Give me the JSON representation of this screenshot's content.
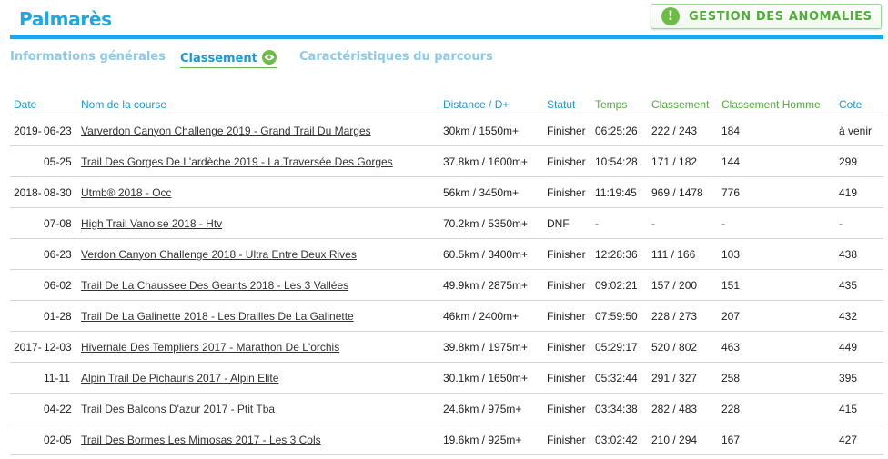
{
  "page_title": "Palmarès",
  "anomaly_button": {
    "label": "GESTION DES ANOMALIES",
    "icon_glyph": "!"
  },
  "tabs": [
    {
      "label": "Informations générales",
      "active": false
    },
    {
      "label": "Classement",
      "active": true
    },
    {
      "label": "Caractéristiques du parcours",
      "active": false
    }
  ],
  "table": {
    "headers": {
      "date": "Date",
      "race": "Nom de la course",
      "distance": "Distance / D+",
      "status": "Statut",
      "time": "Temps",
      "ranking": "Classement",
      "ranking_men": "Classement Homme",
      "rating": "Cote"
    },
    "rows": [
      {
        "year": "2019-",
        "md": "06-23",
        "race": "Varverdon Canyon Challenge 2019 - Grand Trail Du Marges",
        "distance": "30km / 1550m+",
        "status": "Finisher",
        "time": "06:25:26",
        "ranking": "222 / 243",
        "ranking_men": "184",
        "rating": "à venir"
      },
      {
        "year": "",
        "md": "05-25",
        "race": "Trail Des Gorges De L'ardèche 2019 - La Traversée Des Gorges",
        "distance": "37.8km / 1600m+",
        "status": "Finisher",
        "time": "10:54:28",
        "ranking": "171 / 182",
        "ranking_men": "144",
        "rating": "299"
      },
      {
        "year": "2018-",
        "md": "08-30",
        "race": "Utmb® 2018 - Occ",
        "distance": "56km / 3450m+",
        "status": "Finisher",
        "time": "11:19:45",
        "ranking": "969 / 1478",
        "ranking_men": "776",
        "rating": "419"
      },
      {
        "year": "",
        "md": "07-08",
        "race": "High Trail Vanoise 2018 - Htv",
        "distance": "70.2km / 5350m+",
        "status": "DNF",
        "time": "-",
        "ranking": "-",
        "ranking_men": "-",
        "rating": "-"
      },
      {
        "year": "",
        "md": "06-23",
        "race": "Verdon Canyon Challenge 2018 - Ultra Entre Deux Rives",
        "distance": "60.5km / 3400m+",
        "status": "Finisher",
        "time": "12:28:36",
        "ranking": "111 / 166",
        "ranking_men": "103",
        "rating": "438"
      },
      {
        "year": "",
        "md": "06-02",
        "race": "Trail De La Chaussee Des Geants 2018 - Les 3 Vallées",
        "distance": "49.9km / 2875m+",
        "status": "Finisher",
        "time": "09:02:21",
        "ranking": "157 / 200",
        "ranking_men": "151",
        "rating": "435"
      },
      {
        "year": "",
        "md": "01-28",
        "race": "Trail De La Galinette 2018 - Les Drailles De La Galinette",
        "distance": "46km / 2400m+",
        "status": "Finisher",
        "time": "07:59:50",
        "ranking": "228 / 273",
        "ranking_men": "207",
        "rating": "432"
      },
      {
        "year": "2017-",
        "md": "12-03",
        "race": "Hivernale Des Templiers 2017 - Marathon De L'orchis",
        "distance": "39.8km / 1975m+",
        "status": "Finisher",
        "time": "05:29:17",
        "ranking": "520 / 802",
        "ranking_men": "463",
        "rating": "449"
      },
      {
        "year": "",
        "md": "11-11",
        "race": "Alpin Trail De Pichauris 2017 - Alpin Elite",
        "distance": "30.1km / 1650m+",
        "status": "Finisher",
        "time": "05:32:44",
        "ranking": "291 / 327",
        "ranking_men": "258",
        "rating": "395"
      },
      {
        "year": "",
        "md": "04-22",
        "race": "Trail Des Balcons D'azur 2017 - Ptit Tba",
        "distance": "24.6km / 975m+",
        "status": "Finisher",
        "time": "03:34:38",
        "ranking": "282 / 483",
        "ranking_men": "228",
        "rating": "415"
      },
      {
        "year": "",
        "md": "02-05",
        "race": "Trail Des Bormes Les Mimosas 2017 - Les 3 Cols",
        "distance": "19.6km / 925m+",
        "status": "Finisher",
        "time": "03:02:42",
        "ranking": "210 / 294",
        "ranking_men": "167",
        "rating": "427"
      }
    ]
  }
}
